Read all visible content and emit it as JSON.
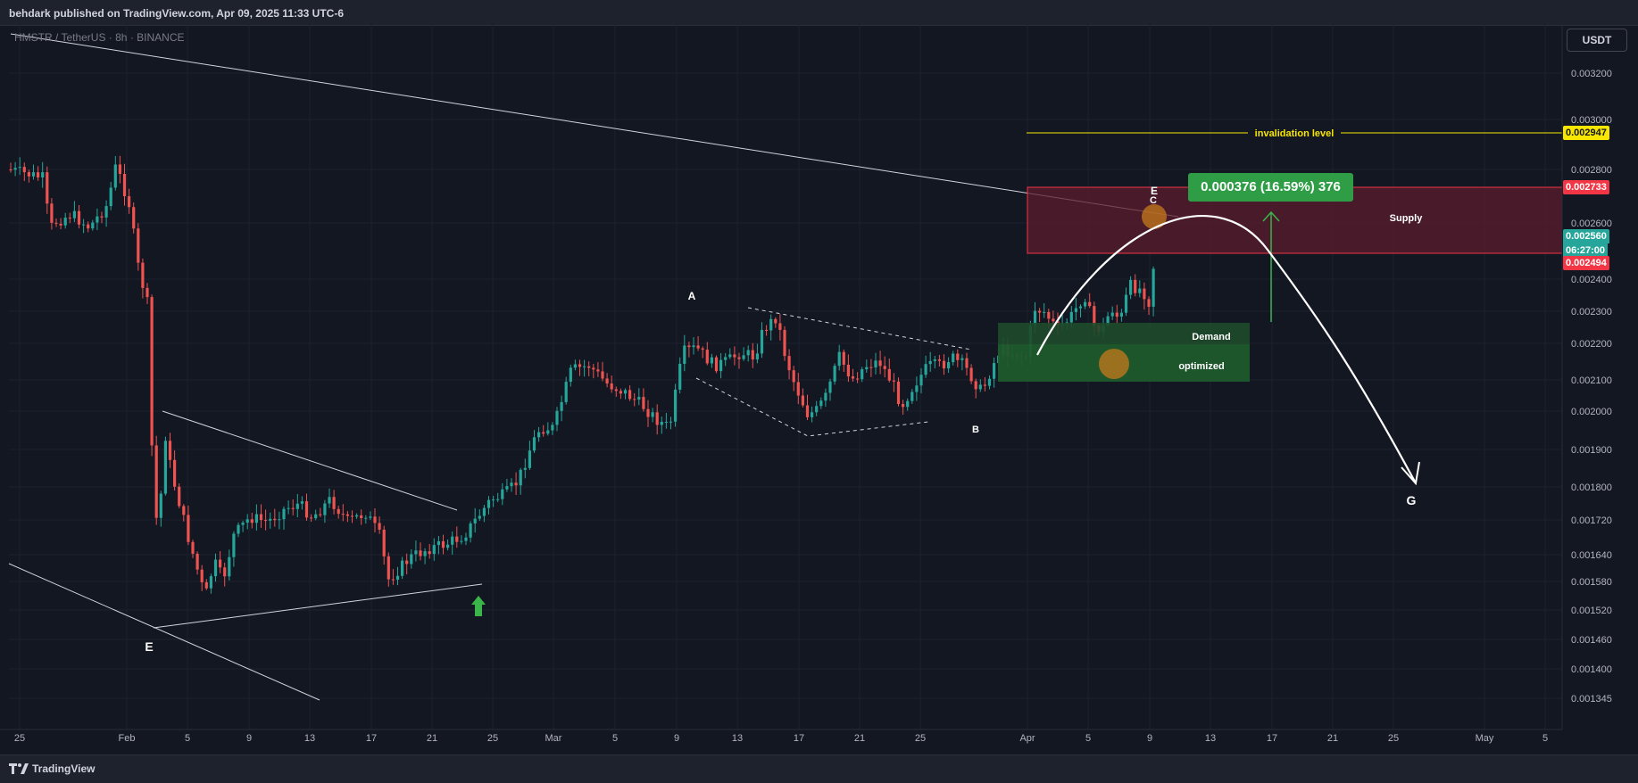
{
  "header": {
    "published": "behdark published on TradingView.com, Apr 09, 2025 11:33 UTC-6"
  },
  "symbol": {
    "line": "HMSTR / TetherUS · 8h · BINANCE"
  },
  "currency_button": "USDT",
  "price_axis": {
    "ticks": [
      "0.003200",
      "0.003000",
      "0.002800",
      "0.002600",
      "0.002400",
      "0.002300",
      "0.002200",
      "0.002100",
      "0.002000",
      "0.001900",
      "0.001800",
      "0.001720",
      "0.001640",
      "0.001580",
      "0.001520",
      "0.001460",
      "0.001400",
      "0.001345"
    ]
  },
  "time_axis": {
    "ticks": [
      "25",
      "Feb",
      "5",
      "9",
      "13",
      "17",
      "21",
      "25",
      "Mar",
      "5",
      "9",
      "13",
      "17",
      "21",
      "25",
      "Apr",
      "5",
      "9",
      "13",
      "17",
      "21",
      "25",
      "May",
      "5"
    ]
  },
  "price_tags": {
    "invalidation": "0.002947",
    "supply_top": "0.002733",
    "current_price": "0.002560",
    "countdown": "06:27:00",
    "supply_bottom": "0.002494"
  },
  "annotations": {
    "invalidation_label": "invalidation level",
    "supply_label": "Supply",
    "demand_label": "Demand",
    "optimized_label": "optimized",
    "profit_label": "0.000376 (16.59%) 376",
    "wave_a": "A",
    "wave_b": "B",
    "wave_c": "C",
    "wave_e_top": "E",
    "wave_e_bottom": "E",
    "wave_g": "G"
  },
  "colors": {
    "background": "#131722",
    "bull": "#26a69a",
    "bear": "#ef5350",
    "invalidation": "#f7e600",
    "supply_zone": "#5c1c2c",
    "demand_zone": "#1f4a2a",
    "profit_green": "#2e9d45"
  },
  "footer": {
    "brand": "TradingView"
  }
}
